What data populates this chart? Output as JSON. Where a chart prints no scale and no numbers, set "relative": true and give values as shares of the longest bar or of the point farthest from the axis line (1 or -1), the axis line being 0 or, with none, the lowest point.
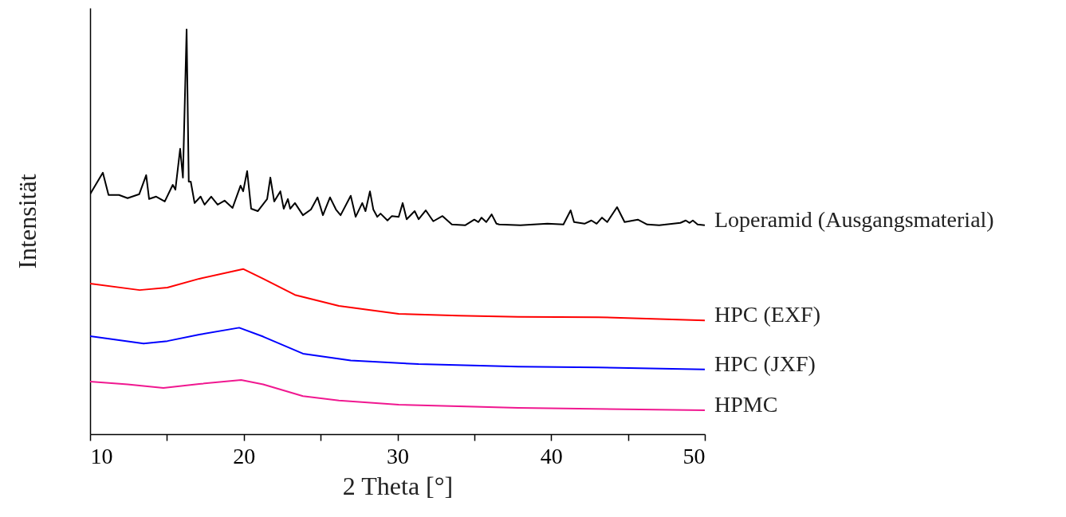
{
  "chart_data": {
    "type": "line",
    "relative": true,
    "xlabel": "2 Theta [°]",
    "ylabel": "Intensität",
    "xlim": [
      10,
      50
    ],
    "xticks": [
      10,
      {
        "value": 15,
        "label": null
      },
      20,
      {
        "value": 25,
        "label": null
      },
      30,
      {
        "value": 35,
        "label": null
      },
      40,
      {
        "value": 45,
        "label": null
      },
      50
    ],
    "tick_labels": "x",
    "grid": false,
    "marker": "none",
    "line_style": "solid",
    "series": [
      {
        "name": "Loperamid (Ausgangsmaterial)",
        "color": "#000000",
        "x": [
          10,
          10.83,
          11.2,
          11.88,
          12.44,
          13.2,
          13.65,
          13.84,
          14.3,
          14.86,
          15.38,
          15.55,
          15.86,
          16.04,
          16.28,
          16.42,
          16.55,
          16.8,
          17.19,
          17.45,
          17.88,
          18.3,
          18.75,
          19.27,
          19.79,
          19.96,
          20.22,
          20.48,
          20.91,
          21.52,
          21.73,
          21.98,
          22.38,
          22.6,
          22.87,
          23.02,
          23.33,
          23.85,
          24.37,
          24.8,
          25.15,
          25.61,
          26.0,
          26.3,
          26.96,
          27.28,
          27.71,
          27.92,
          28.21,
          28.43,
          28.69,
          28.9,
          29.35,
          29.64,
          30.08,
          30.34,
          30.6,
          31.12,
          31.38,
          31.84,
          32.33,
          32.93,
          33.54,
          34.4,
          35.0,
          35.27,
          35.47,
          35.78,
          36.13,
          36.44,
          36.62,
          38.0,
          39.76,
          40.8,
          41.27,
          41.49,
          42.17,
          42.62,
          42.96,
          43.31,
          43.65,
          44.29,
          44.78,
          45.64,
          46.25,
          47.03,
          48.41,
          48.76,
          49.01,
          49.22,
          49.53,
          50
        ],
        "values": [
          0.593,
          0.646,
          0.591,
          0.591,
          0.583,
          0.593,
          0.64,
          0.581,
          0.587,
          0.575,
          0.616,
          0.604,
          0.705,
          0.634,
          1.0,
          0.624,
          0.624,
          0.571,
          0.587,
          0.567,
          0.587,
          0.567,
          0.577,
          0.559,
          0.614,
          0.6,
          0.65,
          0.557,
          0.551,
          0.581,
          0.634,
          0.575,
          0.6,
          0.557,
          0.581,
          0.557,
          0.571,
          0.541,
          0.555,
          0.585,
          0.541,
          0.585,
          0.555,
          0.541,
          0.589,
          0.537,
          0.571,
          0.551,
          0.6,
          0.555,
          0.537,
          0.545,
          0.528,
          0.539,
          0.537,
          0.571,
          0.531,
          0.551,
          0.531,
          0.553,
          0.526,
          0.539,
          0.518,
          0.516,
          0.53,
          0.524,
          0.535,
          0.524,
          0.543,
          0.52,
          0.518,
          0.516,
          0.52,
          0.518,
          0.553,
          0.524,
          0.52,
          0.528,
          0.52,
          0.535,
          0.524,
          0.561,
          0.524,
          0.53,
          0.518,
          0.516,
          0.522,
          0.528,
          0.522,
          0.528,
          0.518,
          0.516
        ]
      },
      {
        "name": "HPC (EXF)",
        "color": "#ff0000",
        "x": [
          10,
          13.22,
          15.03,
          17.1,
          19.96,
          21.26,
          23.33,
          26.19,
          30.08,
          33.97,
          37.86,
          43.05,
          50
        ],
        "values": [
          0.372,
          0.356,
          0.362,
          0.384,
          0.408,
          0.384,
          0.344,
          0.317,
          0.297,
          0.293,
          0.29,
          0.289,
          0.281
        ]
      },
      {
        "name": "HPC (JXF)",
        "color": "#0000ff",
        "x": [
          10,
          13.48,
          15.03,
          17.1,
          19.7,
          21.26,
          23.85,
          26.96,
          31.37,
          37.86,
          43.05,
          50
        ],
        "values": [
          0.242,
          0.224,
          0.23,
          0.246,
          0.263,
          0.241,
          0.199,
          0.182,
          0.173,
          0.167,
          0.165,
          0.16
        ]
      },
      {
        "name": "HPMC",
        "color": "#f01890",
        "x": [
          10,
          12.44,
          14.77,
          17.1,
          19.83,
          21.26,
          23.85,
          26.19,
          30.08,
          37.86,
          50
        ],
        "values": [
          0.13,
          0.123,
          0.114,
          0.124,
          0.134,
          0.123,
          0.094,
          0.083,
          0.073,
          0.065,
          0.059
        ]
      }
    ]
  }
}
